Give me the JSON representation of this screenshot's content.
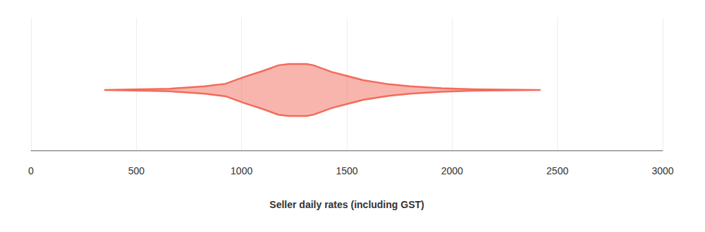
{
  "chart_data": {
    "type": "violin",
    "x_label": "Seller daily rates (including GST)",
    "x": [
      348,
      656,
      824,
      924,
      1008,
      1100,
      1175,
      1225,
      1309,
      1342,
      1426,
      1500,
      1577,
      1700,
      1800,
      1950,
      2100,
      2420
    ],
    "values": [
      0,
      0.05,
      0.14,
      0.24,
      0.49,
      0.73,
      0.95,
      1,
      1,
      0.95,
      0.7,
      0.54,
      0.38,
      0.22,
      0.14,
      0.07,
      0.03,
      0
    ],
    "color": "#f26b5b",
    "xlim": [
      0,
      3000
    ],
    "xticks": [
      0,
      500,
      1000,
      1500,
      2000,
      2500,
      3000
    ],
    "grid": true,
    "tick_labels": "x"
  }
}
